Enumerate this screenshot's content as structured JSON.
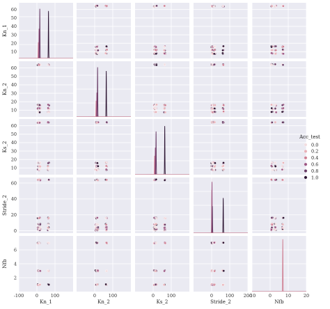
{
  "chart_data": {
    "type": "scatter",
    "kind": "pairplot",
    "variables": [
      "Kn_1",
      "Kn_2",
      "Ks_2",
      "Stride_2",
      "Nfb"
    ],
    "axis_labels": {
      "Kn_1": "Kn_1",
      "Kn_2": "Kn_2",
      "Ks_2": "Ks_2",
      "Stride_2": "Stride_2",
      "Nfb": "Nfb"
    },
    "ranges": {
      "Kn_1": [
        -100,
        200
      ],
      "Kn_2": [
        -100,
        200
      ],
      "Ks_2": [
        -100,
        200
      ],
      "Stride_2": [
        -100,
        200
      ],
      "Nfb": [
        -10,
        20
      ]
    },
    "row_ranges": {
      "Kn_1": [
        2,
        68
      ],
      "Kn_2": [
        2,
        68
      ],
      "Ks_2": [
        2,
        68
      ],
      "Stride_2": [
        -3,
        67
      ],
      "Nfb": [
        0,
        8
      ]
    },
    "x_ticks": {
      "Kn_1": [
        -100,
        0,
        100
      ],
      "Kn_2": [
        0,
        100
      ],
      "Ks_2": [
        0,
        100
      ],
      "Stride_2": [
        0,
        100,
        200
      ],
      "Nfb": [
        -10,
        0,
        10,
        20
      ]
    },
    "y_ticks": {
      "Kn_1": [
        10,
        20,
        30,
        40,
        50,
        60
      ],
      "Kn_2": [
        10,
        20,
        30,
        40,
        50,
        60
      ],
      "Ks_2": [
        10,
        20,
        30,
        40,
        50,
        60
      ],
      "Stride_2": [
        0,
        20,
        40,
        60
      ],
      "Nfb": [
        2,
        4,
        6
      ]
    },
    "hue": {
      "title": "Acc_test",
      "levels": [
        0.0,
        0.2,
        0.4,
        0.6,
        0.8,
        1.0
      ],
      "level_labels": [
        "0.0",
        "0.2",
        "0.4",
        "0.6",
        "0.8",
        "1.0"
      ],
      "colors": [
        "#f2dde0",
        "#e8b1b7",
        "#cf7f92",
        "#9c5582",
        "#673a64",
        "#2a1230"
      ]
    },
    "value_sets": {
      "Kn_1": [
        8,
        12,
        16,
        64
      ],
      "Kn_2": [
        8,
        12,
        16,
        64
      ],
      "Ks_2": [
        8,
        12,
        16,
        64
      ],
      "Stride_2": [
        1,
        2,
        4,
        8,
        16,
        64
      ],
      "Nfb": [
        1,
        3,
        7
      ]
    },
    "diagonal": {
      "type": "kde",
      "peaks": {
        "Kn_1": [
          [
            8,
            0.3
          ],
          [
            12,
            0.55
          ],
          [
            16,
            0.92
          ],
          [
            64,
            0.88
          ]
        ],
        "Kn_2": [
          [
            8,
            0.3
          ],
          [
            12,
            0.45
          ],
          [
            16,
            0.92
          ],
          [
            64,
            0.85
          ]
        ],
        "Ks_2": [
          [
            8,
            0.35
          ],
          [
            12,
            0.5
          ],
          [
            16,
            0.8
          ],
          [
            64,
            0.9
          ]
        ],
        "Stride_2": [
          [
            1,
            0.8
          ],
          [
            2,
            0.95
          ],
          [
            4,
            0.5
          ],
          [
            64,
            0.65
          ]
        ],
        "Nfb": [
          [
            7,
            0.97
          ]
        ]
      }
    },
    "grid": true,
    "legend_position": "right"
  }
}
